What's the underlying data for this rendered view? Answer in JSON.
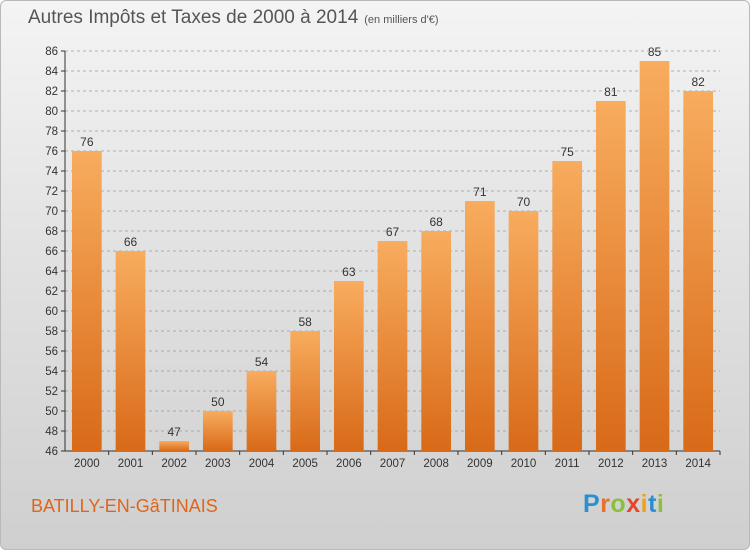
{
  "title": {
    "main": "Autres Impôts et Taxes de 2000 à 2014",
    "unit": "(en milliers d'€)"
  },
  "footer": {
    "town": "BATILLY-EN-GâTINAIS",
    "logo": {
      "letters": [
        {
          "ch": "P",
          "color": "#2a8fd0"
        },
        {
          "ch": "r",
          "color": "#e8702a"
        },
        {
          "ch": "o",
          "color": "#8cbf3a"
        },
        {
          "ch": "x",
          "color": "#e2462c"
        },
        {
          "ch": "i",
          "color": "#f0a020"
        },
        {
          "ch": "t",
          "color": "#2a8fd0"
        },
        {
          "ch": "i",
          "color": "#8cbf3a"
        }
      ]
    }
  },
  "colors": {
    "bar_light": "#f8ac5e",
    "bar_dark": "#d86a18",
    "axis": "#333333",
    "grid": "#9a9a9a"
  },
  "chart_data": {
    "type": "bar",
    "title": "Autres Impôts et Taxes de 2000 à 2014",
    "subtitle": "(en milliers d'€)",
    "categories": [
      "2000",
      "2001",
      "2002",
      "2003",
      "2004",
      "2005",
      "2006",
      "2007",
      "2008",
      "2009",
      "2010",
      "2011",
      "2012",
      "2013",
      "2014"
    ],
    "values": [
      76,
      66,
      47,
      50,
      54,
      58,
      63,
      67,
      68,
      71,
      70,
      75,
      81,
      85,
      82
    ],
    "ylim": [
      46,
      86
    ],
    "yticks": [
      46,
      48,
      50,
      52,
      54,
      56,
      58,
      60,
      62,
      64,
      66,
      68,
      70,
      72,
      74,
      76,
      78,
      80,
      82,
      84,
      86
    ],
    "grid": "horizontal dashed",
    "data_labels": true
  }
}
